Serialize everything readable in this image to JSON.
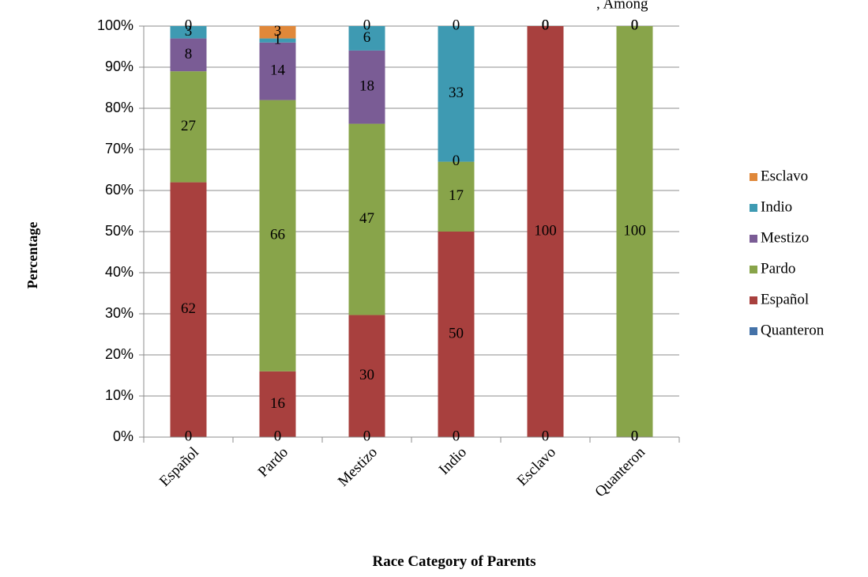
{
  "chart_data": {
    "type": "bar",
    "stacked": true,
    "percent_stacked": true,
    "title": "",
    "header_fragment": ", Among",
    "xlabel": "Race Category of Parents",
    "ylabel": "Percentage",
    "ylim": [
      0,
      100
    ],
    "y_ticks": [
      "0%",
      "10%",
      "20%",
      "30%",
      "40%",
      "50%",
      "60%",
      "70%",
      "80%",
      "90%",
      "100%"
    ],
    "grid": true,
    "legend_position": "right",
    "categories": [
      "Español",
      "Pardo",
      "Mestizo",
      "Indio",
      "Esclavo",
      "Quanteron"
    ],
    "series": [
      {
        "name": "Quanteron",
        "color": "#4472A8",
        "values": [
          0,
          0,
          0,
          0,
          0,
          0
        ]
      },
      {
        "name": "Español",
        "color": "#A8403E",
        "values": [
          62,
          16,
          30,
          50,
          100,
          0
        ]
      },
      {
        "name": "Pardo",
        "color": "#88A44A",
        "values": [
          27,
          66,
          47,
          17,
          0,
          100
        ]
      },
      {
        "name": "Mestizo",
        "color": "#7A5C95",
        "values": [
          8,
          14,
          18,
          0,
          0,
          0
        ]
      },
      {
        "name": "Indio",
        "color": "#3E9AB2",
        "values": [
          3,
          1,
          6,
          33,
          0,
          0
        ]
      },
      {
        "name": "Esclavo",
        "color": "#E0883A",
        "values": [
          0,
          3,
          0,
          0,
          0,
          0
        ]
      }
    ],
    "legend_order": [
      "Esclavo",
      "Indio",
      "Mestizo",
      "Pardo",
      "Español",
      "Quanteron"
    ]
  }
}
